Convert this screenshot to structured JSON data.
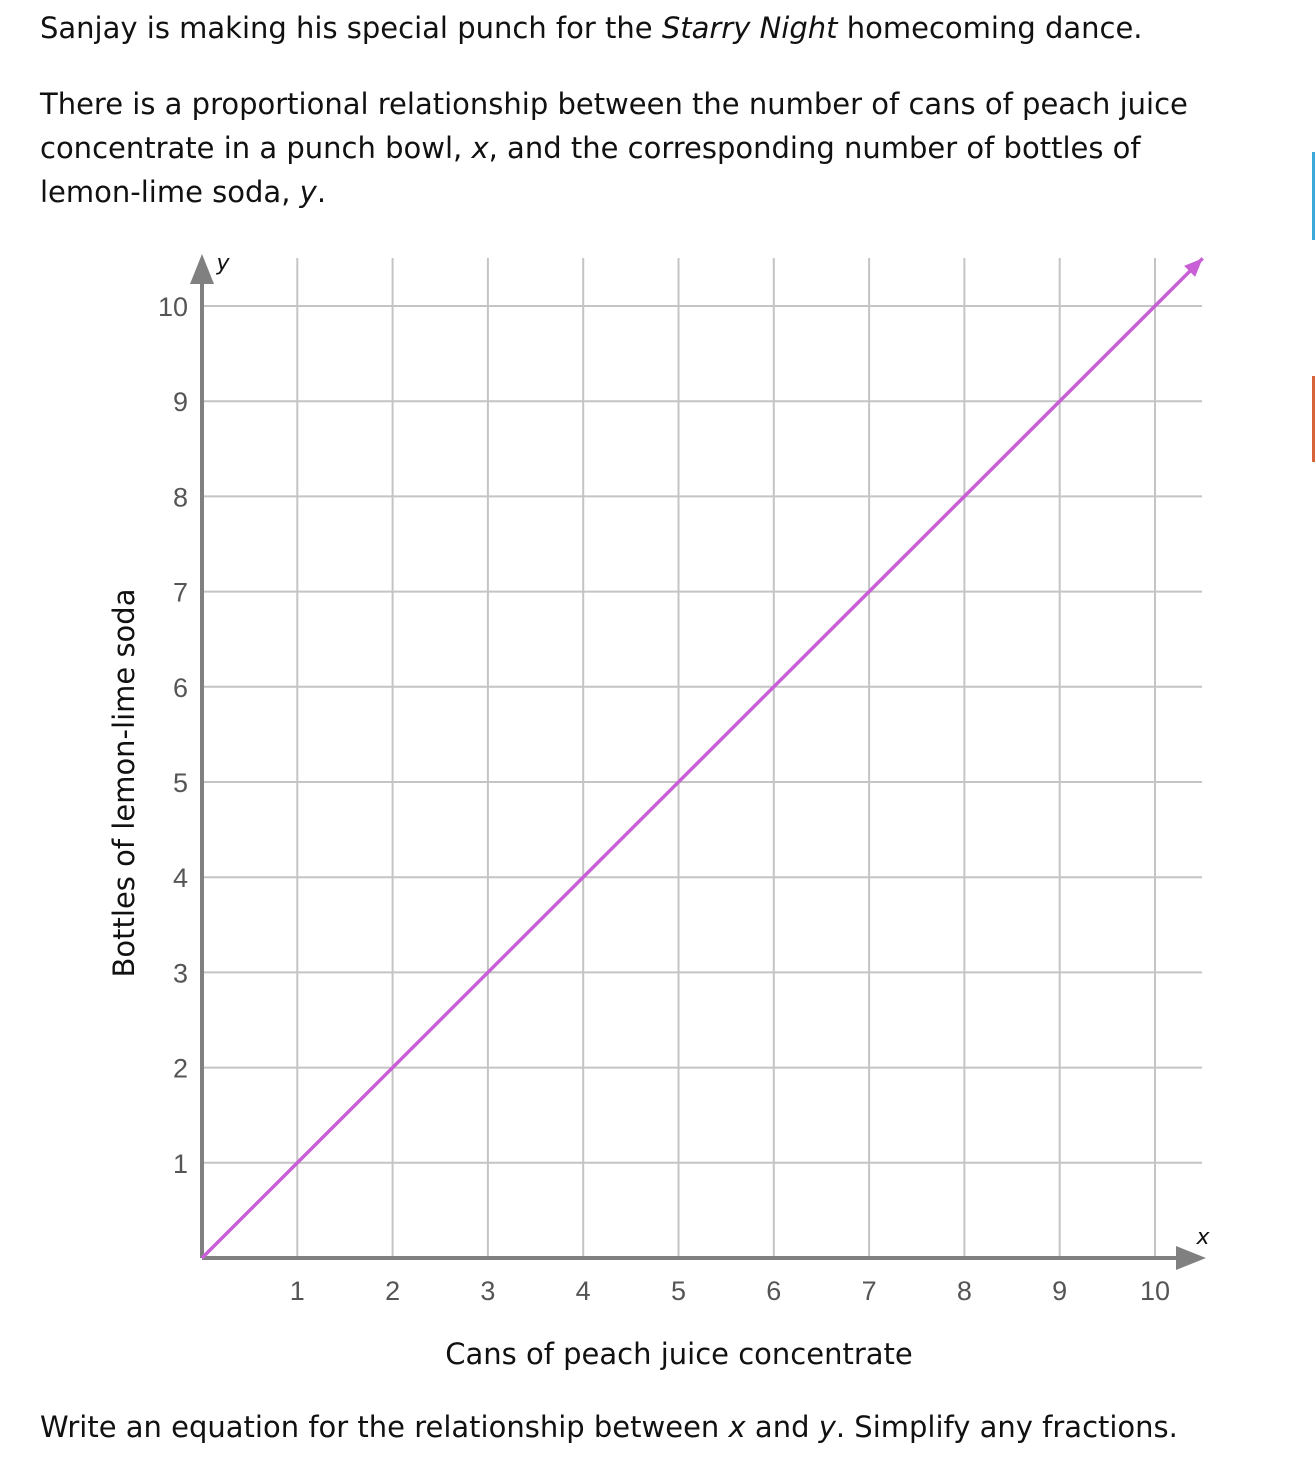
{
  "intro": {
    "before": "Sanjay is making his special punch for the ",
    "title_italic": "Starry Night",
    "after": " homecoming dance."
  },
  "relationship": {
    "line1": "There is a proportional relationship between the number of cans of peach juice",
    "line2a": "concentrate in a punch bowl, ",
    "var_x": "x",
    "line2b": ", and the corresponding number of bottles of",
    "line3a": "lemon-lime soda, ",
    "var_y": "y",
    "line3b": "."
  },
  "prompt": {
    "a": "Write an equation for the relationship between ",
    "x": "x",
    "b": " and ",
    "y": "y",
    "c": ". Simplify any fractions."
  },
  "colors": {
    "line": "#c95fd6",
    "axis": "#808080",
    "grid": "#c4c4c4",
    "edge_blue": "#3aa8d8",
    "edge_orange": "#d9623b"
  },
  "chart_data": {
    "type": "line",
    "xlabel": "Cans of peach juice concentrate",
    "ylabel": "Bottles of lemon-lime soda",
    "x_axis_var": "x",
    "y_axis_var": "y",
    "xlim": [
      0,
      10.5
    ],
    "ylim": [
      0,
      10.5
    ],
    "x_ticks": [
      "1",
      "2",
      "3",
      "4",
      "5",
      "6",
      "7",
      "8",
      "9",
      "10"
    ],
    "y_ticks": [
      "1",
      "2",
      "3",
      "4",
      "5",
      "6",
      "7",
      "8",
      "9",
      "10"
    ],
    "grid": true,
    "series": [
      {
        "name": "y = x",
        "x": [
          0,
          10.5
        ],
        "y": [
          0,
          10.5
        ],
        "arrow_end": true
      }
    ]
  }
}
